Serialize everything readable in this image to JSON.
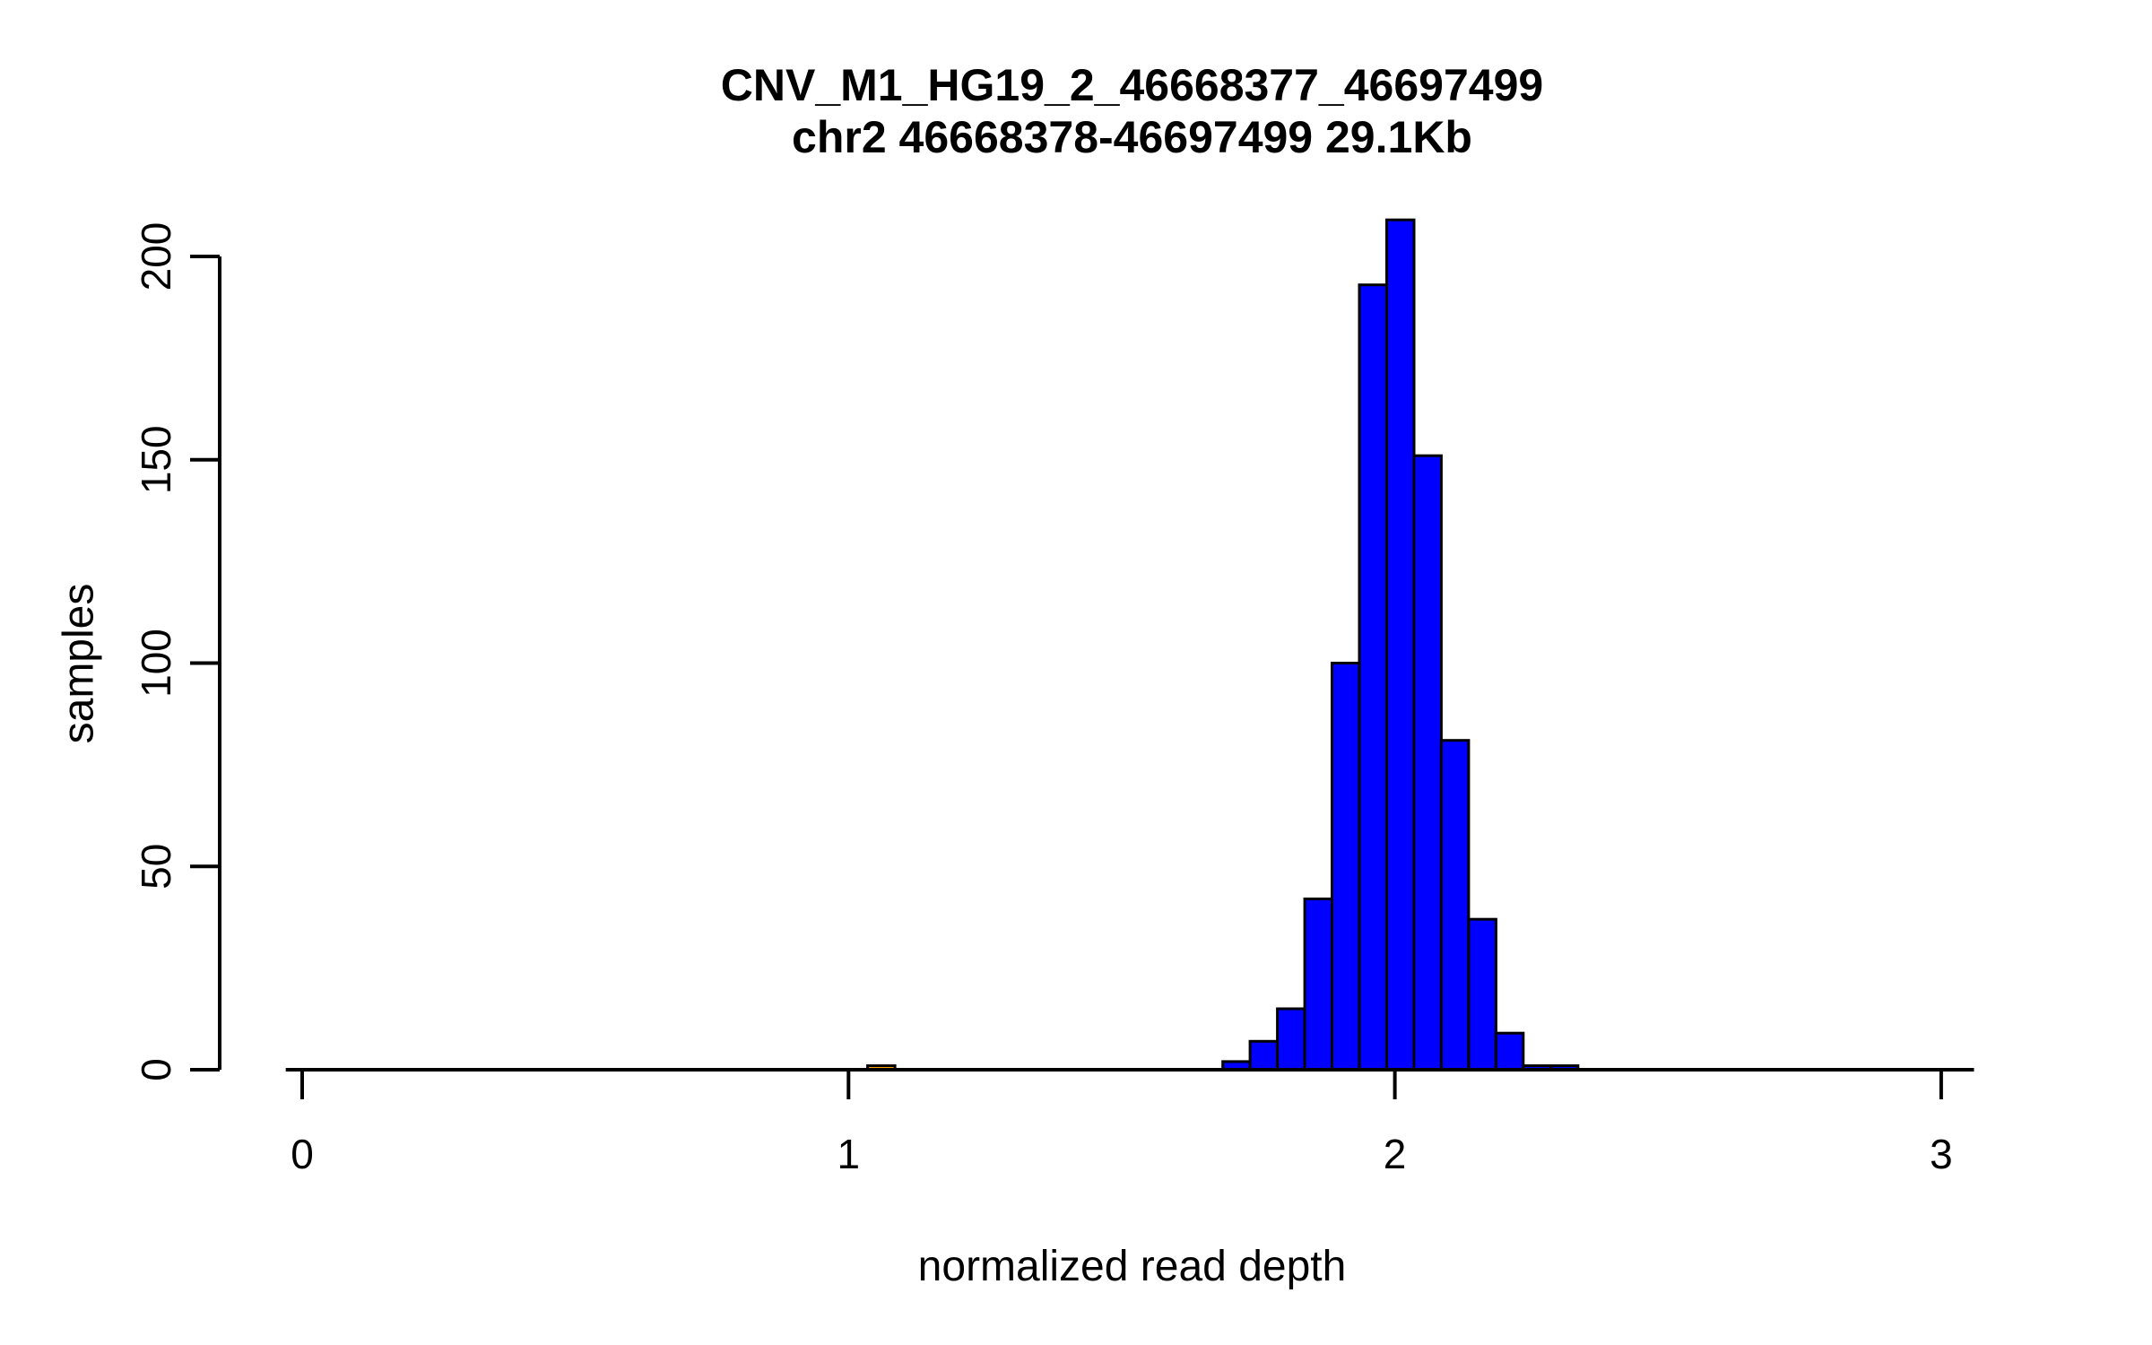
{
  "figure": {
    "title_line1": "CNV_M1_HG19_2_46668377_46697499",
    "title_line2": "chr2 46668378-46697499 29.1Kb"
  },
  "chart_data": {
    "type": "bar",
    "subtype": "histogram",
    "title": "CNV_M1_HG19_2_46668377_46697499",
    "subtitle": "chr2 46668378-46697499 29.1Kb",
    "xlabel": "normalized read depth",
    "ylabel": "samples",
    "xlim": [
      -0.03,
      3.06
    ],
    "ylim": [
      0,
      200
    ],
    "x_ticks": [
      0,
      1,
      2,
      3
    ],
    "y_ticks": [
      0,
      50,
      100,
      150,
      200
    ],
    "grid": false,
    "legend": "none",
    "bin_width": 0.05,
    "bars": [
      {
        "x0": 1.035,
        "x1": 1.085,
        "count": 1,
        "color": "#FFA500"
      },
      {
        "x0": 1.685,
        "x1": 1.735,
        "count": 2,
        "color": "#0000FF"
      },
      {
        "x0": 1.735,
        "x1": 1.785,
        "count": 7,
        "color": "#0000FF"
      },
      {
        "x0": 1.785,
        "x1": 1.835,
        "count": 15,
        "color": "#0000FF"
      },
      {
        "x0": 1.835,
        "x1": 1.885,
        "count": 42,
        "color": "#0000FF"
      },
      {
        "x0": 1.885,
        "x1": 1.935,
        "count": 100,
        "color": "#0000FF"
      },
      {
        "x0": 1.935,
        "x1": 1.985,
        "count": 193,
        "color": "#0000FF"
      },
      {
        "x0": 1.985,
        "x1": 2.035,
        "count": 209,
        "color": "#0000FF"
      },
      {
        "x0": 2.035,
        "x1": 2.085,
        "count": 151,
        "color": "#0000FF"
      },
      {
        "x0": 2.085,
        "x1": 2.135,
        "count": 81,
        "color": "#0000FF"
      },
      {
        "x0": 2.135,
        "x1": 2.185,
        "count": 37,
        "color": "#0000FF"
      },
      {
        "x0": 2.185,
        "x1": 2.235,
        "count": 9,
        "color": "#0000FF"
      },
      {
        "x0": 2.235,
        "x1": 2.285,
        "count": 1,
        "color": "#0000FF"
      },
      {
        "x0": 2.285,
        "x1": 2.335,
        "count": 1,
        "color": "#0000FF"
      }
    ],
    "colors": {
      "bar_fill": "#0000FF",
      "outlier_fill": "#FFA500",
      "stroke": "#000000",
      "axis": "#000000",
      "background": "#FFFFFF"
    }
  }
}
